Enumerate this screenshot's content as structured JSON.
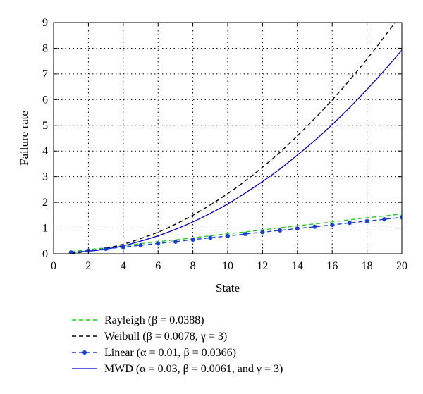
{
  "chart_data": {
    "type": "line",
    "title": "",
    "xlabel": "State",
    "ylabel": "Failure rate",
    "xlim": [
      0,
      20
    ],
    "ylim": [
      0,
      9
    ],
    "xticks": [
      "0",
      "2",
      "4",
      "6",
      "8",
      "10",
      "12",
      "14",
      "16",
      "18",
      "20"
    ],
    "yticks": [
      "0",
      "1",
      "2",
      "3",
      "4",
      "5",
      "6",
      "7",
      "8",
      "9"
    ],
    "grid": true,
    "legend_position": "below",
    "series": [
      {
        "name": "Rayleigh (β = 0.0388)",
        "color": "#22cc22",
        "style": "dashed",
        "x": [
          1,
          2,
          3,
          4,
          5,
          6,
          7,
          8,
          9,
          10,
          11,
          12,
          13,
          14,
          15,
          16,
          17,
          18,
          19,
          20
        ],
        "y": [
          0.08,
          0.16,
          0.23,
          0.31,
          0.39,
          0.47,
          0.54,
          0.62,
          0.7,
          0.78,
          0.85,
          0.93,
          1.01,
          1.09,
          1.16,
          1.24,
          1.32,
          1.4,
          1.47,
          1.55
        ]
      },
      {
        "name": "Weibull (β = 0.0078, γ = 3)",
        "color": "#000000",
        "style": "dashed",
        "x": [
          1,
          2,
          3,
          4,
          5,
          6,
          7,
          8,
          9,
          10,
          11,
          12,
          13,
          14,
          15,
          16,
          17,
          18,
          19,
          20
        ],
        "y": [
          0.02,
          0.09,
          0.21,
          0.37,
          0.59,
          0.84,
          1.15,
          1.5,
          1.9,
          2.34,
          2.83,
          3.37,
          3.95,
          4.59,
          5.27,
          5.99,
          6.76,
          7.58,
          8.45,
          9.36
        ]
      },
      {
        "name": "Linear (α = 0.01, β = 0.0366)",
        "color": "#1a3fcc",
        "style": "dashed-marker",
        "x": [
          1,
          2,
          3,
          4,
          5,
          6,
          7,
          8,
          9,
          10,
          11,
          12,
          13,
          14,
          15,
          16,
          17,
          18,
          19,
          20
        ],
        "y": [
          0.05,
          0.12,
          0.19,
          0.26,
          0.33,
          0.4,
          0.47,
          0.55,
          0.62,
          0.69,
          0.77,
          0.84,
          0.91,
          0.98,
          1.05,
          1.12,
          1.2,
          1.27,
          1.34,
          1.42
        ]
      },
      {
        "name": "MWD (α = 0.03, β = 0.0061, and γ = 3)",
        "color": "#0000cc",
        "style": "solid",
        "x": [
          1,
          2,
          3,
          4,
          5,
          6,
          7,
          8,
          9,
          10,
          11,
          12,
          13,
          14,
          15,
          16,
          17,
          18,
          19,
          20
        ],
        "y": [
          0.05,
          0.1,
          0.18,
          0.31,
          0.49,
          0.7,
          0.95,
          1.24,
          1.57,
          1.94,
          2.36,
          2.81,
          3.3,
          3.84,
          4.41,
          5.03,
          5.69,
          6.4,
          7.14,
          7.93
        ]
      }
    ]
  }
}
